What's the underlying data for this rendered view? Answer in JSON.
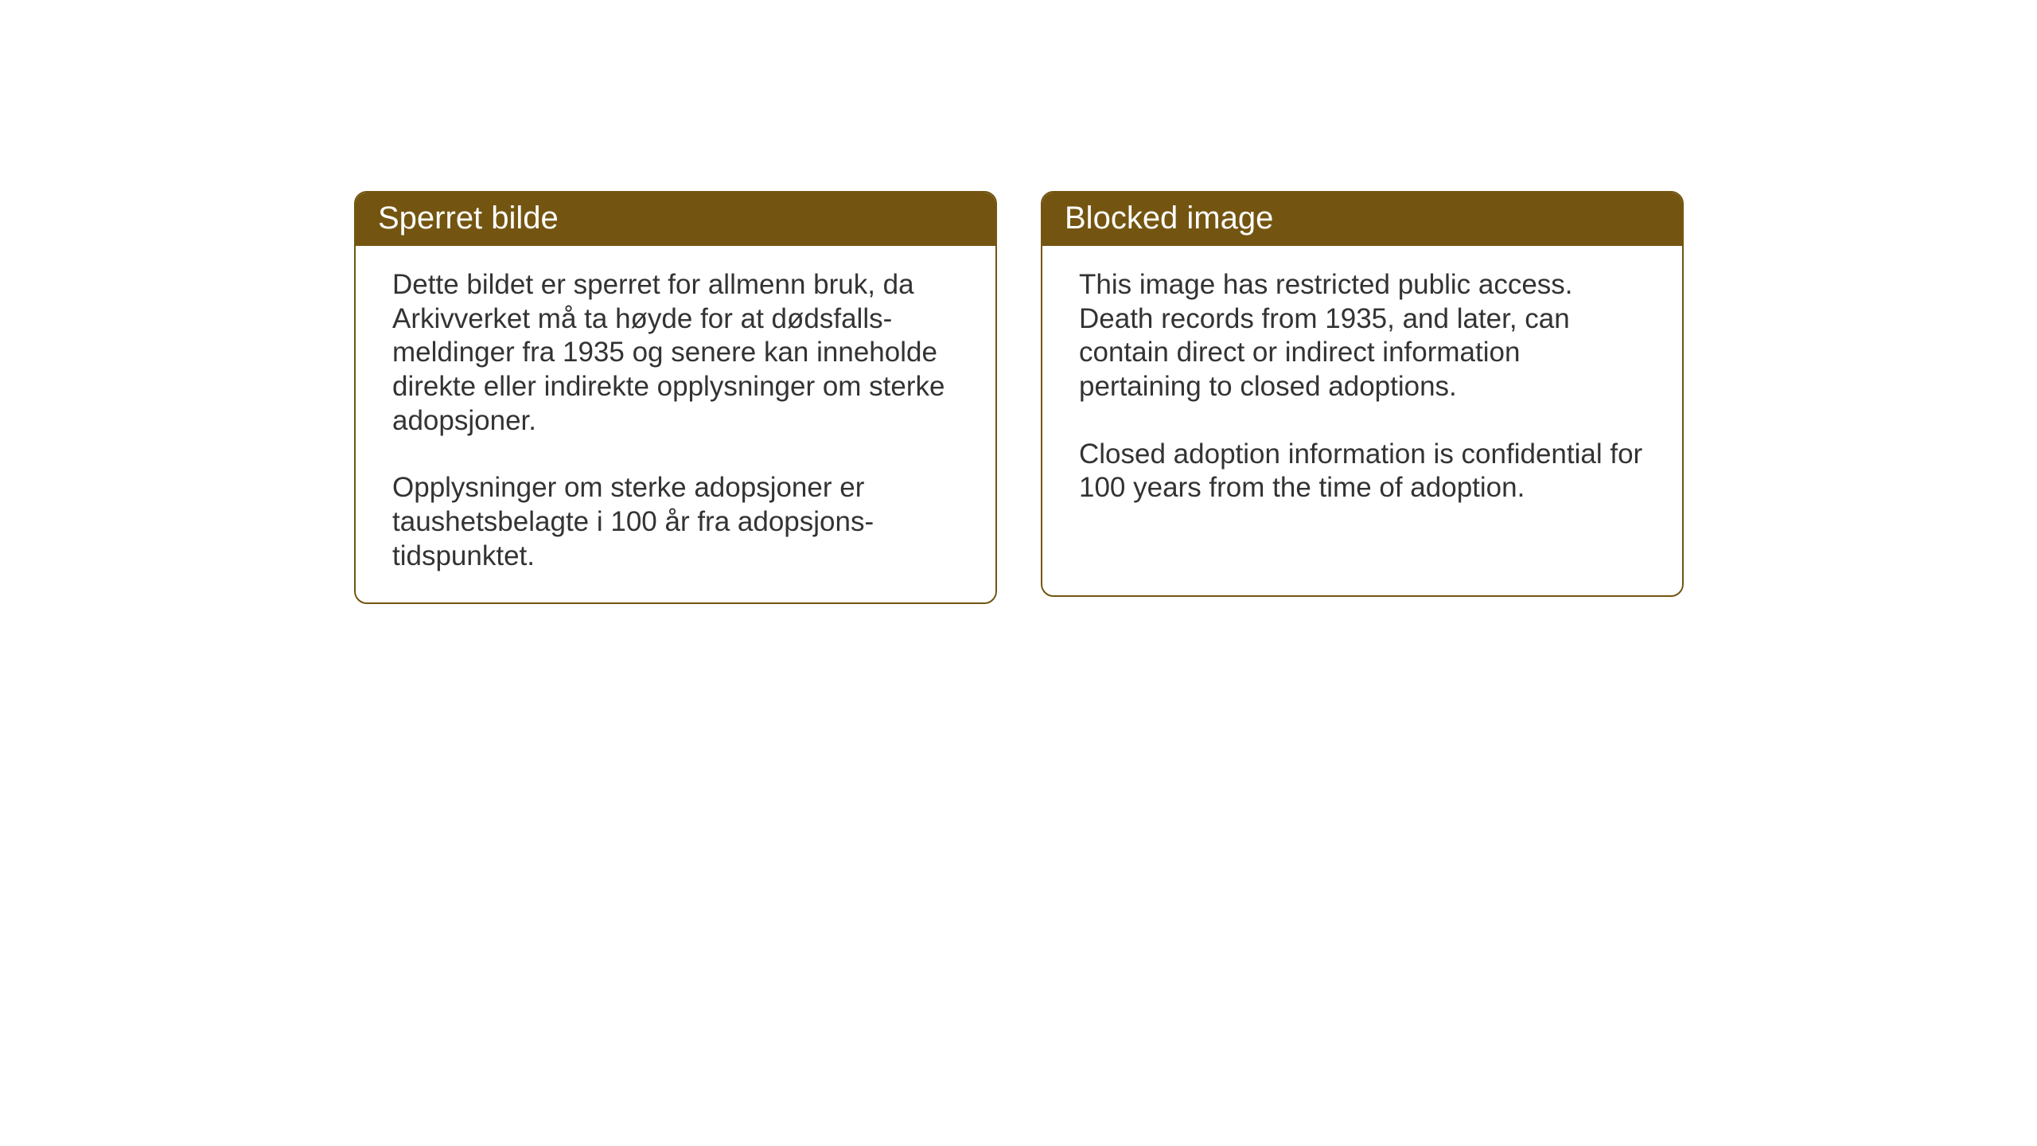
{
  "cards": {
    "norwegian": {
      "title": "Sperret bilde",
      "paragraph1": "Dette bildet er sperret for allmenn bruk, da Arkivverket må ta høyde for at dødsfalls-meldinger fra 1935 og senere kan inneholde direkte eller indirekte opplysninger om sterke adopsjoner.",
      "paragraph2": "Opplysninger om sterke adopsjoner er taushetsbelagte i 100 år fra adopsjons-tidspunktet."
    },
    "english": {
      "title": "Blocked image",
      "paragraph1": "This image has restricted public access. Death records from 1935, and later, can contain direct or indirect information pertaining to closed adoptions.",
      "paragraph2": "Closed adoption information is confidential for 100 years from the time of adoption."
    }
  },
  "styling": {
    "header_bg_color": "#735511",
    "header_text_color": "#ffffff",
    "border_color": "#735511",
    "body_text_color": "#333333",
    "page_bg_color": "#ffffff",
    "header_fontsize": 40,
    "body_fontsize": 35,
    "border_radius": 16,
    "border_width": 2
  }
}
